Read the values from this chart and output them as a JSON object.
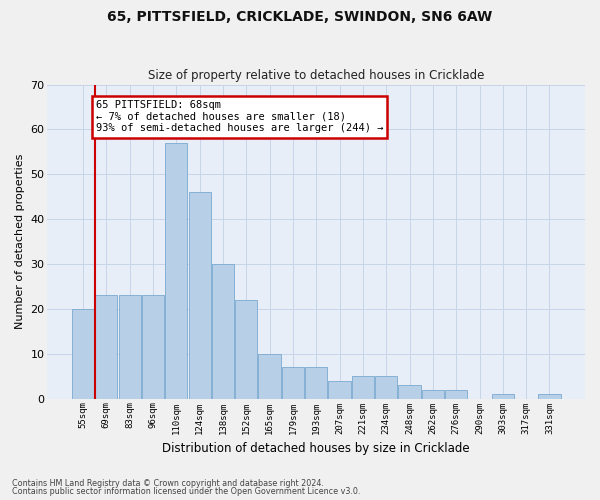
{
  "title_line1": "65, PITTSFIELD, CRICKLADE, SWINDON, SN6 6AW",
  "title_line2": "Size of property relative to detached houses in Cricklade",
  "xlabel": "Distribution of detached houses by size in Cricklade",
  "ylabel": "Number of detached properties",
  "categories": [
    "55sqm",
    "69sqm",
    "83sqm",
    "96sqm",
    "110sqm",
    "124sqm",
    "138sqm",
    "152sqm",
    "165sqm",
    "179sqm",
    "193sqm",
    "207sqm",
    "221sqm",
    "234sqm",
    "248sqm",
    "262sqm",
    "276sqm",
    "290sqm",
    "303sqm",
    "317sqm",
    "331sqm"
  ],
  "values": [
    20,
    23,
    23,
    23,
    57,
    46,
    30,
    22,
    10,
    7,
    7,
    4,
    5,
    5,
    3,
    2,
    2,
    0,
    1,
    0,
    1
  ],
  "bar_color": "#b8cfe8",
  "bar_edge_color": "#7aaad0",
  "annotation_text": "65 PITTSFIELD: 68sqm\n← 7% of detached houses are smaller (18)\n93% of semi-detached houses are larger (244) →",
  "annotation_box_color": "#ffffff",
  "annotation_box_edge": "#cc0000",
  "ylim": [
    0,
    70
  ],
  "yticks": [
    0,
    10,
    20,
    30,
    40,
    50,
    60,
    70
  ],
  "grid_color": "#c8d4e8",
  "background_color": "#dde6f2",
  "plot_bg_color": "#e8eef8",
  "red_line_color": "#cc0000",
  "footer_line1": "Contains HM Land Registry data © Crown copyright and database right 2024.",
  "footer_line2": "Contains public sector information licensed under the Open Government Licence v3.0."
}
